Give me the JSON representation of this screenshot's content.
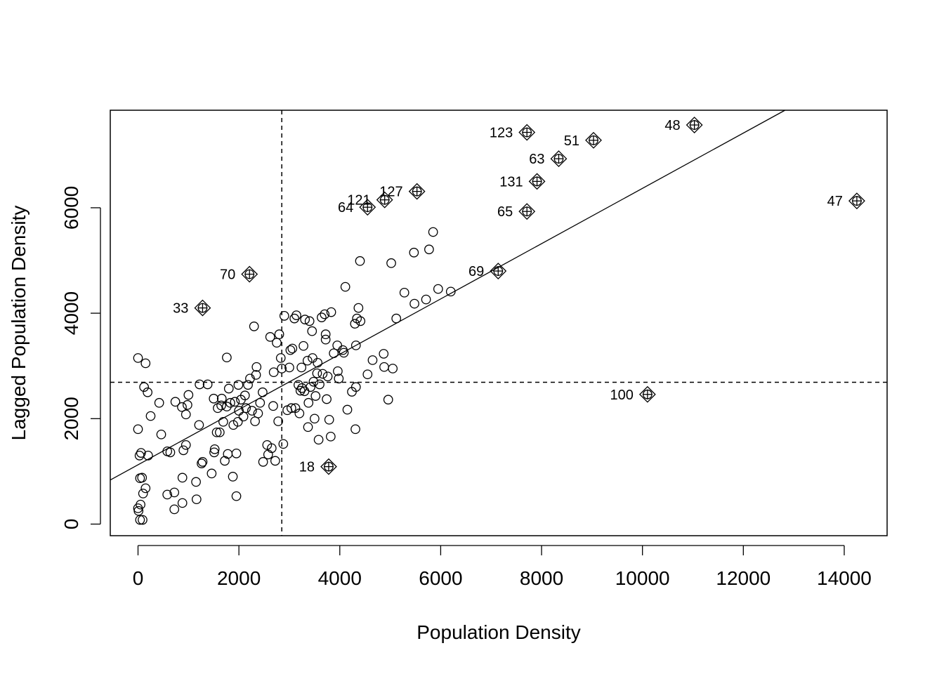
{
  "chart_data": {
    "type": "scatter",
    "title": "",
    "xlabel": "Population Density",
    "ylabel": "Lagged Population Density",
    "xlim": [
      -550,
      14850
    ],
    "ylim": [
      -220,
      7850
    ],
    "xticks": [
      0,
      2000,
      4000,
      6000,
      8000,
      10000,
      12000,
      14000
    ],
    "yticks": [
      0,
      2000,
      4000,
      6000
    ],
    "mean_x": 2850,
    "mean_y": 2690,
    "regression": {
      "intercept": 1125,
      "slope": 0.5243
    },
    "points": [
      [
        0,
        3150
      ],
      [
        120,
        2600
      ],
      [
        150,
        3050
      ],
      [
        190,
        2500
      ],
      [
        60,
        1350
      ],
      [
        30,
        1300
      ],
      [
        250,
        2050
      ],
      [
        420,
        2300
      ],
      [
        460,
        1700
      ],
      [
        200,
        1300
      ],
      [
        0,
        1800
      ],
      [
        40,
        870
      ],
      [
        0,
        300
      ],
      [
        10,
        250
      ],
      [
        50,
        370
      ],
      [
        80,
        880
      ],
      [
        150,
        680
      ],
      [
        100,
        580
      ],
      [
        40,
        80
      ],
      [
        90,
        80
      ],
      [
        580,
        1380
      ],
      [
        640,
        1360
      ],
      [
        580,
        560
      ],
      [
        720,
        600
      ],
      [
        720,
        280
      ],
      [
        880,
        880
      ],
      [
        880,
        400
      ],
      [
        740,
        2320
      ],
      [
        950,
        2080
      ],
      [
        870,
        2220
      ],
      [
        980,
        2260
      ],
      [
        1000,
        2450
      ],
      [
        900,
        1400
      ],
      [
        950,
        1500
      ],
      [
        1150,
        800
      ],
      [
        1160,
        470
      ],
      [
        1210,
        1880
      ],
      [
        1220,
        2650
      ],
      [
        1260,
        1150
      ],
      [
        1280,
        1180
      ],
      [
        1380,
        2650
      ],
      [
        1460,
        960
      ],
      [
        1510,
        1360
      ],
      [
        1520,
        1420
      ],
      [
        1500,
        2380
      ],
      [
        1560,
        1740
      ],
      [
        1580,
        2200
      ],
      [
        1620,
        1740
      ],
      [
        1650,
        2250
      ],
      [
        1660,
        2380
      ],
      [
        1690,
        1940
      ],
      [
        1720,
        1200
      ],
      [
        1760,
        2230
      ],
      [
        1760,
        3160
      ],
      [
        1780,
        1330
      ],
      [
        1800,
        2570
      ],
      [
        1830,
        2300
      ],
      [
        1890,
        1880
      ],
      [
        1880,
        900
      ],
      [
        1920,
        2320
      ],
      [
        1950,
        1340
      ],
      [
        1950,
        530
      ],
      [
        1980,
        1940
      ],
      [
        1990,
        2640
      ],
      [
        2000,
        2150
      ],
      [
        2040,
        2360
      ],
      [
        2090,
        2040
      ],
      [
        2120,
        2440
      ],
      [
        2140,
        2200
      ],
      [
        2180,
        2640
      ],
      [
        2220,
        2760
      ],
      [
        2260,
        2150
      ],
      [
        2300,
        3750
      ],
      [
        2320,
        1950
      ],
      [
        2340,
        2830
      ],
      [
        2350,
        2980
      ],
      [
        2380,
        2100
      ],
      [
        2420,
        2300
      ],
      [
        2470,
        2500
      ],
      [
        2480,
        1180
      ],
      [
        2560,
        1500
      ],
      [
        2580,
        1320
      ],
      [
        2620,
        3550
      ],
      [
        2650,
        1440
      ],
      [
        2680,
        2240
      ],
      [
        2690,
        2880
      ],
      [
        2720,
        1200
      ],
      [
        2750,
        3440
      ],
      [
        2780,
        1950
      ],
      [
        2800,
        3600
      ],
      [
        2830,
        3150
      ],
      [
        2850,
        2950
      ],
      [
        2880,
        1520
      ],
      [
        2900,
        3950
      ],
      [
        2960,
        2160
      ],
      [
        3000,
        2970
      ],
      [
        3020,
        3300
      ],
      [
        3040,
        2200
      ],
      [
        3060,
        3330
      ],
      [
        3100,
        3900
      ],
      [
        3120,
        2200
      ],
      [
        3140,
        3960
      ],
      [
        3180,
        2640
      ],
      [
        3200,
        2100
      ],
      [
        3220,
        2530
      ],
      [
        3240,
        2970
      ],
      [
        3250,
        2580
      ],
      [
        3280,
        3380
      ],
      [
        3300,
        2520
      ],
      [
        3310,
        3880
      ],
      [
        3360,
        3100
      ],
      [
        3370,
        1840
      ],
      [
        3380,
        2300
      ],
      [
        3400,
        3850
      ],
      [
        3420,
        2600
      ],
      [
        3450,
        3660
      ],
      [
        3460,
        3150
      ],
      [
        3480,
        2700
      ],
      [
        3500,
        2000
      ],
      [
        3520,
        2430
      ],
      [
        3550,
        2860
      ],
      [
        3560,
        3060
      ],
      [
        3580,
        1600
      ],
      [
        3600,
        2650
      ],
      [
        3640,
        3920
      ],
      [
        3660,
        2850
      ],
      [
        3700,
        3980
      ],
      [
        3720,
        3600
      ],
      [
        3720,
        3500
      ],
      [
        3740,
        2370
      ],
      [
        3760,
        2800
      ],
      [
        3790,
        1980
      ],
      [
        3820,
        1660
      ],
      [
        3830,
        4020
      ],
      [
        3880,
        3240
      ],
      [
        3950,
        3390
      ],
      [
        3960,
        2900
      ],
      [
        3980,
        2760
      ],
      [
        4060,
        3300
      ],
      [
        4080,
        3250
      ],
      [
        4110,
        4500
      ],
      [
        4150,
        2170
      ],
      [
        4240,
        2510
      ],
      [
        4300,
        3800
      ],
      [
        4310,
        1800
      ],
      [
        4320,
        2600
      ],
      [
        4320,
        3390
      ],
      [
        4340,
        3900
      ],
      [
        4370,
        4100
      ],
      [
        4400,
        4990
      ],
      [
        4410,
        3850
      ],
      [
        4550,
        2840
      ],
      [
        4650,
        3110
      ],
      [
        4870,
        3230
      ],
      [
        4880,
        2980
      ],
      [
        4960,
        2360
      ],
      [
        5020,
        4950
      ],
      [
        5050,
        2950
      ],
      [
        5120,
        3900
      ],
      [
        5280,
        4390
      ],
      [
        5470,
        5150
      ],
      [
        5480,
        4180
      ],
      [
        5710,
        4260
      ],
      [
        5770,
        5210
      ],
      [
        5850,
        5540
      ],
      [
        5950,
        4460
      ],
      [
        6200,
        4410
      ]
    ],
    "influential": [
      {
        "label": "47",
        "x": 14250,
        "y": 6130
      },
      {
        "label": "48",
        "x": 11030,
        "y": 7570
      },
      {
        "label": "51",
        "x": 9030,
        "y": 7280
      },
      {
        "label": "123",
        "x": 7710,
        "y": 7430
      },
      {
        "label": "63",
        "x": 8340,
        "y": 6930
      },
      {
        "label": "131",
        "x": 7910,
        "y": 6500
      },
      {
        "label": "65",
        "x": 7710,
        "y": 5930
      },
      {
        "label": "127",
        "x": 5530,
        "y": 6310
      },
      {
        "label": "121",
        "x": 4890,
        "y": 6150
      },
      {
        "label": "64",
        "x": 4550,
        "y": 6010
      },
      {
        "label": "69",
        "x": 7140,
        "y": 4800
      },
      {
        "label": "70",
        "x": 2210,
        "y": 4740
      },
      {
        "label": "33",
        "x": 1280,
        "y": 4100
      },
      {
        "label": "100",
        "x": 10100,
        "y": 2460
      },
      {
        "label": "18",
        "x": 3780,
        "y": 1090
      }
    ]
  }
}
